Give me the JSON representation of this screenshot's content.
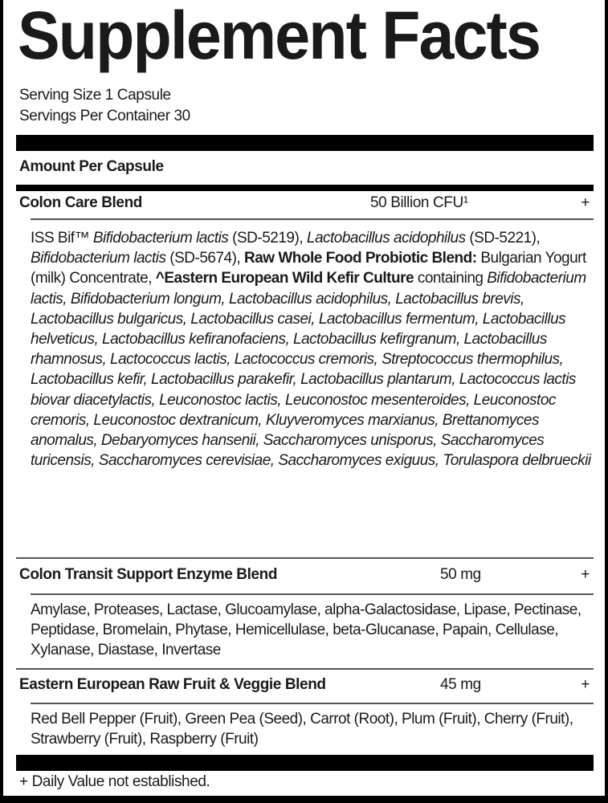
{
  "title": "Supplement Facts",
  "serving_size": "Serving Size 1 Capsule",
  "servings_per_container": "Servings Per Container 30",
  "amount_header": "Amount Per Capsule",
  "blends": [
    {
      "name": "Colon Care Blend",
      "amount": "50 Billion CFU¹",
      "dv": "+",
      "ingredients": [
        {
          "t": "ISS Bif™ ",
          "s": "n"
        },
        {
          "t": "Bifidobacterium lactis",
          "s": "i"
        },
        {
          "t": " (SD-5219), ",
          "s": "n"
        },
        {
          "t": "Lactobacillus acidophilus",
          "s": "i"
        },
        {
          "t": " (SD-5221), ",
          "s": "n"
        },
        {
          "t": "Bifidobacterium lactis",
          "s": "i"
        },
        {
          "t": " (SD-5674), ",
          "s": "n"
        },
        {
          "t": "Raw Whole Food Probiotic Blend:",
          "s": "b"
        },
        {
          "t": " Bulgarian Yogurt (milk) Concentrate, ",
          "s": "n"
        },
        {
          "t": "^Eastern European Wild Kefir Culture",
          "s": "b"
        },
        {
          "t": " containing ",
          "s": "n"
        },
        {
          "t": "Bifidobacterium lactis, Bifidobacterium longum, Lactobacillus acidophilus, Lactobacillus brevis, Lactobacillus bulgaricus, Lactobacillus casei, Lactobacillus fermentum, Lactobacillus helveticus, Lactobacillus kefiranofaciens, Lactobacillus kefirgranum, Lactobacillus rhamnosus, Lactococcus lactis, Lactococcus cremoris, Streptococcus thermophilus, Lactobacillus kefir, Lactobacillus parakefir, Lactobacillus plantarum, Lactococcus lactis biovar diacetylactis, Leuconostoc lactis, Leuconostoc mesenteroides, Leuconostoc cremoris, Leuconostoc dextranicum, Kluyveromyces marxianus, Brettanomyces anomalus, Debaryomyces hansenii, Saccharomyces unisporus, Saccharomyces turicensis, Saccharomyces cerevisiae, Saccharomyces exiguus, Torulaspora delbrueckii",
          "s": "i"
        }
      ]
    },
    {
      "name": "Colon Transit Support Enzyme Blend",
      "amount": "50 mg",
      "dv": "+",
      "ingredients": [
        {
          "t": "Amylase, Proteases, Lactase, Glucoamylase, alpha-Galactosidase, Lipase, Pectinase, Peptidase, Bromelain, Phytase, Hemicellulase, beta-Glucanase, Papain, Cellulase, Xylanase, Diastase, Invertase",
          "s": "n"
        }
      ]
    },
    {
      "name": "Eastern European Raw Fruit & Veggie Blend",
      "amount": "45 mg",
      "dv": "+",
      "ingredients": [
        {
          "t": "Red Bell Pepper (Fruit), Green Pea (Seed), Carrot (Root), Plum (Fruit), Cherry (Fruit), Strawberry (Fruit), Raspberry (Fruit)",
          "s": "n"
        }
      ]
    }
  ],
  "footnote": "+ Daily Value not established."
}
